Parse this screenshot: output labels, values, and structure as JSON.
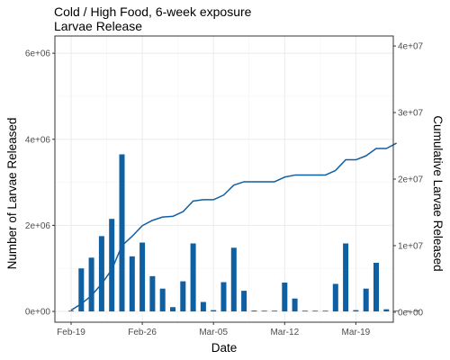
{
  "chart_data": {
    "type": "bar",
    "title": "Cold / High Food, 6-week exposure",
    "subtitle": "Larvae Release",
    "xlabel": "Date",
    "ylabel": "Number of Larvae Released",
    "y2label": "Cumulative Larvae Released",
    "x_tick_labels": [
      "Feb-19",
      "Feb-26",
      "Mar-05",
      "Mar-12",
      "Mar-19"
    ],
    "y_tick_labels": [
      "0e+00",
      "2e+06",
      "4e+06",
      "6e+06"
    ],
    "y2_tick_labels": [
      "0e+00",
      "1e+07",
      "2e+07",
      "3e+07",
      "4e+07"
    ],
    "ylim": [
      -250000,
      6400000
    ],
    "y2lim": [
      -1500000,
      41500000
    ],
    "grid": true,
    "bar_color": "#0f5fa3",
    "line_color": "#0f5fa3",
    "x_days": [
      0,
      1,
      2,
      3,
      4,
      5,
      6,
      7,
      8,
      9,
      10,
      11,
      12,
      13,
      14,
      15,
      16,
      17,
      18,
      19,
      20,
      21,
      22,
      23,
      24,
      25,
      26,
      27,
      28,
      29,
      30,
      31,
      32,
      33,
      34
    ],
    "x_dates": [
      "Feb-19",
      "Feb-20",
      "Feb-21",
      "Feb-22",
      "Feb-23",
      "Feb-24",
      "Feb-25",
      "Feb-26",
      "Feb-27",
      "Feb-28",
      "Feb-29",
      "Mar-01",
      "Mar-02",
      "Mar-03",
      "Mar-04",
      "Mar-05",
      "Mar-06",
      "Mar-07",
      "Mar-08",
      "Mar-09",
      "Mar-10",
      "Mar-11",
      "Mar-12",
      "Mar-13",
      "Mar-14",
      "Mar-15",
      "Mar-16",
      "Mar-17",
      "Mar-18",
      "Mar-19",
      "Mar-20",
      "Mar-21",
      "Mar-22",
      "Mar-23",
      "Mar-24"
    ],
    "series": [
      {
        "type": "bar",
        "axis": "left",
        "values": [
          0,
          1000000,
          1250000,
          1750000,
          2150000,
          3650000,
          1280000,
          1600000,
          820000,
          530000,
          100000,
          700000,
          1580000,
          220000,
          30000,
          680000,
          1480000,
          480000,
          20000,
          0,
          0,
          670000,
          300000,
          0,
          0,
          0,
          640000,
          1580000,
          30000,
          530000,
          1130000,
          50000,
          0,
          0,
          0
        ]
      },
      {
        "type": "line",
        "axis": "right",
        "values": [
          300000,
          1250000,
          2500000,
          4250000,
          6400000,
          10000000,
          11400000,
          13000000,
          13800000,
          14300000,
          14400000,
          15100000,
          16700000,
          16900000,
          16900000,
          17600000,
          19100000,
          19600000,
          19600000,
          19600000,
          19600000,
          20300000,
          20600000,
          20600000,
          20600000,
          20600000,
          21300000,
          22900000,
          22900000,
          23500000,
          24600000,
          24600000,
          25400000,
          0,
          0
        ]
      }
    ]
  }
}
